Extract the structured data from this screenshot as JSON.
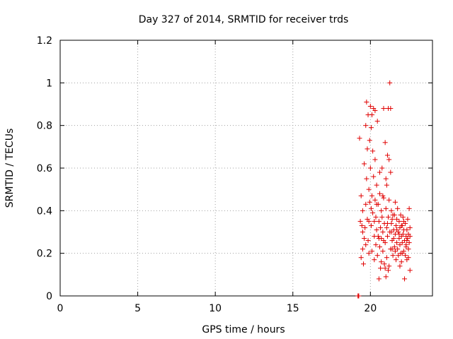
{
  "chart_data": {
    "type": "scatter",
    "title": "Day 327 of 2014, SRMTID for receiver trds",
    "xlabel": "GPS time / hours",
    "ylabel": "SRMTID / TECUs",
    "xlim": [
      0,
      24
    ],
    "ylim": [
      0,
      1.2
    ],
    "xticks": [
      0,
      5,
      10,
      15,
      20
    ],
    "xtick_labels": [
      "0",
      "5",
      "10",
      "15",
      "20"
    ],
    "yticks": [
      0,
      0.2,
      0.4,
      0.6,
      0.8,
      1,
      1.2
    ],
    "ytick_labels": [
      "0",
      "0.2",
      "0.4",
      "0.6",
      "0.8",
      "1",
      "1.2"
    ],
    "grid": true,
    "marker": "+",
    "color": "#e00000",
    "series": [
      {
        "name": "SRMTID",
        "points": [
          [
            19.2,
            0.0
          ],
          [
            19.2,
            0.0
          ],
          [
            19.25,
            0.0
          ],
          [
            19.3,
            0.74
          ],
          [
            19.35,
            0.35
          ],
          [
            19.4,
            0.47
          ],
          [
            19.4,
            0.18
          ],
          [
            19.45,
            0.33
          ],
          [
            19.5,
            0.22
          ],
          [
            19.5,
            0.4
          ],
          [
            19.55,
            0.15
          ],
          [
            19.6,
            0.62
          ],
          [
            19.6,
            0.27
          ],
          [
            19.65,
            0.32
          ],
          [
            19.7,
            0.43
          ],
          [
            19.7,
            0.8
          ],
          [
            19.75,
            0.91
          ],
          [
            19.75,
            0.55
          ],
          [
            19.8,
            0.69
          ],
          [
            19.8,
            0.36
          ],
          [
            19.85,
            0.85
          ],
          [
            19.85,
            0.26
          ],
          [
            19.9,
            0.5
          ],
          [
            19.9,
            0.2
          ],
          [
            19.95,
            0.44
          ],
          [
            19.95,
            0.73
          ],
          [
            20.0,
            0.89
          ],
          [
            20.0,
            0.6
          ],
          [
            20.05,
            0.33
          ],
          [
            20.05,
            0.79
          ],
          [
            20.1,
            0.47
          ],
          [
            20.1,
            0.21
          ],
          [
            20.15,
            0.68
          ],
          [
            20.15,
            0.39
          ],
          [
            20.2,
            0.88
          ],
          [
            20.2,
            0.56
          ],
          [
            20.25,
            0.28
          ],
          [
            20.25,
            0.17
          ],
          [
            20.3,
            0.45
          ],
          [
            20.3,
            0.64
          ],
          [
            20.35,
            0.37
          ],
          [
            20.35,
            0.24
          ],
          [
            20.4,
            0.52
          ],
          [
            20.4,
            0.31
          ],
          [
            20.45,
            0.19
          ],
          [
            20.5,
            0.43
          ],
          [
            20.5,
            0.28
          ],
          [
            20.55,
            0.35
          ],
          [
            20.55,
            0.08
          ],
          [
            20.6,
            0.48
          ],
          [
            20.6,
            0.23
          ],
          [
            20.65,
            0.32
          ],
          [
            20.65,
            0.13
          ],
          [
            20.7,
            0.4
          ],
          [
            20.7,
            0.27
          ],
          [
            20.75,
            0.6
          ],
          [
            20.75,
            0.37
          ],
          [
            20.8,
            0.21
          ],
          [
            20.8,
            0.3
          ],
          [
            20.85,
            0.88
          ],
          [
            20.85,
            0.46
          ],
          [
            20.9,
            0.15
          ],
          [
            20.9,
            0.34
          ],
          [
            20.95,
            0.72
          ],
          [
            20.95,
            0.25
          ],
          [
            21.0,
            0.55
          ],
          [
            21.0,
            0.41
          ],
          [
            21.05,
            0.18
          ],
          [
            21.05,
            0.32
          ],
          [
            21.1,
            0.66
          ],
          [
            21.1,
            0.28
          ],
          [
            21.15,
            0.88
          ],
          [
            21.15,
            0.37
          ],
          [
            21.2,
            0.14
          ],
          [
            21.2,
            0.45
          ],
          [
            21.25,
            1.0
          ],
          [
            21.25,
            0.3
          ],
          [
            21.3,
            0.58
          ],
          [
            21.3,
            0.22
          ],
          [
            21.35,
            0.34
          ],
          [
            21.35,
            0.4
          ],
          [
            21.4,
            0.26
          ],
          [
            21.4,
            0.36
          ],
          [
            21.45,
            0.19
          ],
          [
            21.5,
            0.31
          ],
          [
            21.5,
            0.27
          ],
          [
            21.55,
            0.38
          ],
          [
            21.55,
            0.23
          ],
          [
            21.6,
            0.44
          ],
          [
            21.6,
            0.29
          ],
          [
            21.65,
            0.17
          ],
          [
            21.65,
            0.33
          ],
          [
            21.7,
            0.25
          ],
          [
            21.7,
            0.36
          ],
          [
            21.75,
            0.22
          ],
          [
            21.75,
            0.41
          ],
          [
            21.8,
            0.3
          ],
          [
            21.8,
            0.19
          ],
          [
            21.85,
            0.27
          ],
          [
            21.85,
            0.35
          ],
          [
            21.9,
            0.24
          ],
          [
            21.9,
            0.32
          ],
          [
            21.95,
            0.2
          ],
          [
            21.95,
            0.38
          ],
          [
            22.0,
            0.28
          ],
          [
            22.0,
            0.16
          ],
          [
            22.05,
            0.33
          ],
          [
            22.05,
            0.25
          ],
          [
            22.1,
            0.29
          ],
          [
            22.1,
            0.37
          ],
          [
            22.15,
            0.21
          ],
          [
            22.15,
            0.31
          ],
          [
            22.2,
            0.26
          ],
          [
            22.2,
            0.08
          ],
          [
            22.25,
            0.34
          ],
          [
            22.25,
            0.19
          ],
          [
            22.3,
            0.28
          ],
          [
            22.3,
            0.23
          ],
          [
            22.35,
            0.31
          ],
          [
            22.35,
            0.17
          ],
          [
            22.4,
            0.27
          ],
          [
            22.4,
            0.36
          ],
          [
            22.45,
            0.22
          ],
          [
            22.45,
            0.29
          ],
          [
            22.5,
            0.41
          ],
          [
            22.5,
            0.25
          ],
          [
            22.55,
            0.12
          ],
          [
            22.55,
            0.32
          ],
          [
            20.1,
            0.85
          ],
          [
            20.3,
            0.87
          ],
          [
            20.45,
            0.82
          ],
          [
            21.3,
            0.88
          ],
          [
            21.05,
            0.52
          ],
          [
            20.6,
            0.58
          ],
          [
            21.2,
            0.64
          ],
          [
            20.8,
            0.47
          ],
          [
            21.45,
            0.38
          ],
          [
            21.0,
            0.09
          ],
          [
            20.7,
            0.16
          ],
          [
            20.95,
            0.13
          ],
          [
            21.15,
            0.12
          ],
          [
            21.35,
            0.3
          ],
          [
            22.0,
            0.33
          ],
          [
            21.6,
            0.21
          ],
          [
            22.3,
            0.24
          ],
          [
            22.45,
            0.18
          ],
          [
            21.85,
            0.29
          ],
          [
            22.15,
            0.35
          ],
          [
            19.5,
            0.3
          ],
          [
            19.7,
            0.24
          ],
          [
            19.9,
            0.35
          ],
          [
            20.05,
            0.41
          ],
          [
            20.25,
            0.35
          ],
          [
            20.4,
            0.43
          ],
          [
            20.55,
            0.27
          ],
          [
            20.85,
            0.26
          ],
          [
            21.1,
            0.34
          ],
          [
            21.4,
            0.22
          ],
          [
            21.7,
            0.31
          ],
          [
            22.05,
            0.2
          ],
          [
            22.35,
            0.26
          ],
          [
            22.55,
            0.28
          ],
          [
            21.9,
            0.14
          ]
        ]
      }
    ]
  }
}
